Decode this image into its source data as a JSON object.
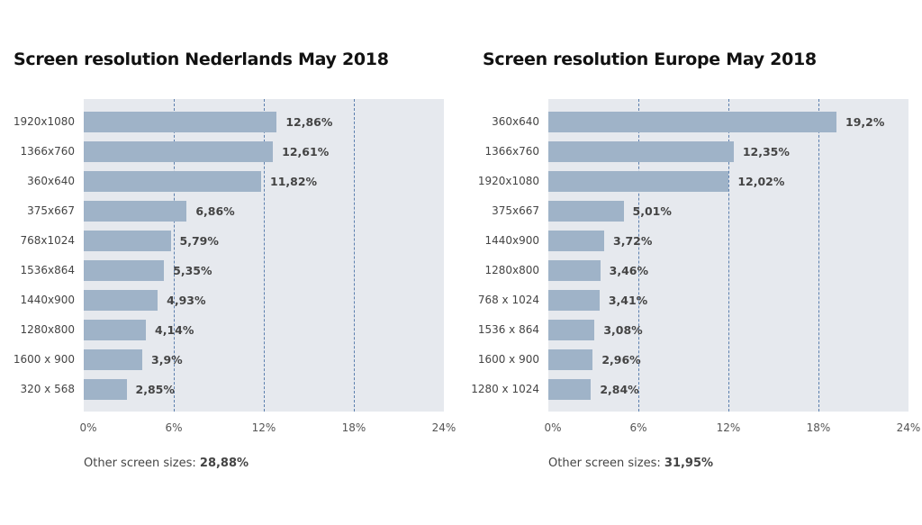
{
  "chart_data": [
    {
      "type": "bar",
      "orientation": "horizontal",
      "title": "Screen resolution Nederlands May 2018",
      "categories": [
        "1920x1080",
        "1366x760",
        "360x640",
        "375x667",
        "768x1024",
        "1536x864",
        "1440x900",
        "1280x800",
        "1600 x 900",
        "320 x 568"
      ],
      "values": [
        12.86,
        12.61,
        11.82,
        6.86,
        5.79,
        5.35,
        4.93,
        4.14,
        3.9,
        2.85
      ],
      "value_labels": [
        "12,86%",
        "12,61%",
        "11,82%",
        "6,86%",
        "5,79%",
        "5,35%",
        "4,93%",
        "4,14%",
        "3,9%",
        "2,85%"
      ],
      "xlim": [
        0,
        24
      ],
      "xticks": [
        0,
        6,
        12,
        18,
        24
      ],
      "xtick_labels": [
        "0%",
        "6%",
        "12%",
        "18%",
        "24%"
      ],
      "grid": "vertical dashed",
      "other_label": "Other screen sizes:",
      "other_value": "28,88%"
    },
    {
      "type": "bar",
      "orientation": "horizontal",
      "title": "Screen resolution Europe May 2018",
      "categories": [
        "360x640",
        "1366x760",
        "1920x1080",
        "375x667",
        "1440x900",
        "1280x800",
        "768 x 1024",
        "1536 x 864",
        "1600 x 900",
        "1280 x 1024"
      ],
      "values": [
        19.2,
        12.35,
        12.02,
        5.01,
        3.72,
        3.46,
        3.41,
        3.08,
        2.96,
        2.84
      ],
      "value_labels": [
        "19,2%",
        "12,35%",
        "12,02%",
        "5,01%",
        "3,72%",
        "3,46%",
        "3,41%",
        "3,08%",
        "2,96%",
        "2,84%"
      ],
      "xlim": [
        0,
        24
      ],
      "xticks": [
        0,
        6,
        12,
        18,
        24
      ],
      "xtick_labels": [
        "0%",
        "6%",
        "12%",
        "18%",
        "24%"
      ],
      "grid": "vertical dashed",
      "other_label": "Other screen sizes:",
      "other_value": "31,95%"
    }
  ],
  "colors": {
    "bar": "#9fb3c8",
    "plot_background": "#e6e9ee",
    "grid": "#5b7fae",
    "text": "#444444"
  }
}
